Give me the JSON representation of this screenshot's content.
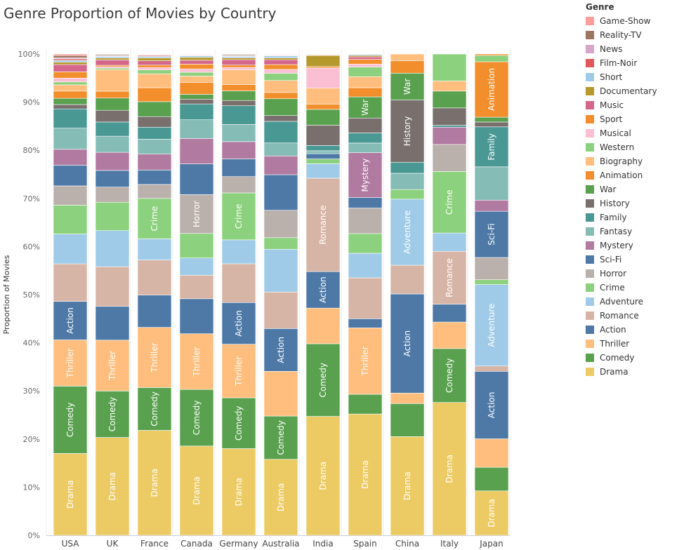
{
  "chart_data": {
    "type": "bar",
    "stacked": true,
    "normalized": true,
    "title": "Genre Proportion of Movies by Country",
    "ylabel": "Proportion of Movies",
    "xlabel": "",
    "ylim": [
      0,
      100
    ],
    "y_ticks": [
      "0%",
      "10%",
      "20%",
      "30%",
      "40%",
      "50%",
      "60%",
      "70%",
      "80%",
      "90%",
      "100%"
    ],
    "categories": [
      "USA",
      "UK",
      "France",
      "Canada",
      "Germany",
      "Australia",
      "India",
      "Spain",
      "China",
      "Italy",
      "Japan"
    ],
    "legend_title": "Genre",
    "legend_position": "right",
    "series": [
      {
        "name": "Drama",
        "color": "#edcb64",
        "values": [
          17.0,
          20.0,
          21.8,
          18.6,
          18.1,
          15.8,
          24.7,
          25.2,
          20.6,
          27.6,
          9.2
        ]
      },
      {
        "name": "Comedy",
        "color": "#59a14f",
        "values": [
          14.0,
          9.5,
          8.9,
          11.8,
          10.6,
          9.0,
          15.1,
          4.1,
          6.9,
          11.2,
          4.9
        ]
      },
      {
        "name": "Thriller",
        "color": "#ffbe7d",
        "values": [
          9.6,
          10.4,
          12.5,
          11.6,
          11.2,
          9.3,
          7.4,
          13.8,
          2.2,
          5.5,
          5.9
        ]
      },
      {
        "name": "Action",
        "color": "#4e79a7",
        "values": [
          8.0,
          6.9,
          6.7,
          7.3,
          8.7,
          8.9,
          7.6,
          1.9,
          20.7,
          3.7,
          14.0
        ]
      },
      {
        "name": "Romance",
        "color": "#d7b5a6",
        "values": [
          7.8,
          8.1,
          7.3,
          4.9,
          8.1,
          7.6,
          19.4,
          8.5,
          6.0,
          11.0,
          1.1
        ]
      },
      {
        "name": "Adventure",
        "color": "#a0cbe8",
        "values": [
          6.2,
          7.4,
          4.4,
          3.6,
          5.0,
          8.9,
          3.0,
          5.1,
          13.8,
          3.8,
          16.9
        ]
      },
      {
        "name": "Crime",
        "color": "#8cd17d",
        "values": [
          6.0,
          5.8,
          8.4,
          5.1,
          9.8,
          2.4,
          1.0,
          4.1,
          2.0,
          12.8,
          1.0
        ]
      },
      {
        "name": "Horror",
        "color": "#bab0ac",
        "values": [
          4.0,
          3.1,
          2.9,
          8.1,
          3.4,
          5.7,
          0,
          5.3,
          0,
          5.6,
          4.6
        ]
      },
      {
        "name": "Sci-Fi",
        "color": "#4e79a7",
        "values": [
          4.3,
          3.4,
          3.0,
          6.4,
          3.7,
          7.4,
          1.1,
          2.2,
          0,
          0,
          9.6
        ]
      },
      {
        "name": "Mystery",
        "color": "#b07aa1",
        "values": [
          3.3,
          3.7,
          3.3,
          5.3,
          3.6,
          3.9,
          0,
          9.3,
          0,
          3.6,
          2.3
        ]
      },
      {
        "name": "Fantasy",
        "color": "#86bcb6",
        "values": [
          4.4,
          3.3,
          3.1,
          3.9,
          3.6,
          2.7,
          0.6,
          2.0,
          3.4,
          0,
          6.9
        ]
      },
      {
        "name": "Family",
        "color": "#499894",
        "values": [
          4.0,
          2.9,
          2.5,
          3.3,
          3.9,
          4.5,
          1.1,
          2.1,
          2.3,
          0.4,
          8.3
        ]
      },
      {
        "name": "History",
        "color": "#79706e",
        "values": [
          0.9,
          2.4,
          2.2,
          1.0,
          1.1,
          1.2,
          4.2,
          3.1,
          13.0,
          3.6,
          1.0
        ]
      },
      {
        "name": "War",
        "color": "#59a14f",
        "values": [
          1.3,
          2.5,
          3.1,
          1.0,
          2.0,
          3.5,
          3.3,
          4.4,
          5.6,
          3.5,
          1.0
        ]
      },
      {
        "name": "Animation",
        "color": "#f28e2b",
        "values": [
          1.5,
          1.4,
          2.9,
          2.5,
          1.3,
          1.3,
          1.1,
          1.9,
          2.6,
          0,
          11.5
        ]
      },
      {
        "name": "Biography",
        "color": "#ffbe7d",
        "values": [
          1.3,
          4.4,
          2.9,
          1.3,
          3.1,
          2.5,
          3.3,
          2.3,
          1.4,
          2.1,
          0
        ]
      },
      {
        "name": "Western",
        "color": "#8cd17d",
        "values": [
          0.6,
          0.3,
          0.8,
          0.8,
          0,
          1.5,
          0,
          2.0,
          0,
          5.6,
          1.3
        ]
      },
      {
        "name": "Musical",
        "color": "#fabfd2",
        "values": [
          0.8,
          0.3,
          0.5,
          0.7,
          0.5,
          0.8,
          4.2,
          0.6,
          0,
          0,
          0
        ]
      },
      {
        "name": "Sport",
        "color": "#f28e2b",
        "values": [
          1.3,
          0.3,
          0.5,
          1.0,
          0.5,
          1.0,
          0.3,
          1.0,
          0,
          0,
          0.3
        ]
      },
      {
        "name": "Music",
        "color": "#d4668c",
        "values": [
          1.5,
          1.1,
          0.9,
          0.8,
          1.1,
          1.0,
          0,
          0.5,
          0,
          0,
          0
        ]
      },
      {
        "name": "Documentary",
        "color": "#b6992d",
        "values": [
          0.5,
          0.4,
          0.6,
          0.6,
          0.4,
          0.4,
          2.3,
          0.3,
          0,
          0,
          0
        ]
      },
      {
        "name": "Short",
        "color": "#a0cbe8",
        "values": [
          0.4,
          0.3,
          0.3,
          0.3,
          0.3,
          0.4,
          0,
          0.2,
          0,
          0,
          0
        ]
      },
      {
        "name": "Film-Noir",
        "color": "#e15759",
        "values": [
          0.3,
          0.1,
          0.2,
          0.1,
          0.1,
          0.1,
          0.1,
          0,
          0,
          0,
          0
        ]
      },
      {
        "name": "News",
        "color": "#d6a5c9",
        "values": [
          0.2,
          0.1,
          0.1,
          0.1,
          0.1,
          0.1,
          0.1,
          0,
          0,
          0,
          0
        ]
      },
      {
        "name": "Reality-TV",
        "color": "#9d7660",
        "values": [
          0.5,
          0.2,
          0.1,
          0.1,
          0.2,
          0.1,
          0.1,
          0.1,
          0,
          0,
          0
        ]
      },
      {
        "name": "Game-Show",
        "color": "#ff9d9a",
        "values": [
          0.3,
          0.1,
          0.1,
          0.1,
          0.1,
          0.1,
          0,
          0,
          0,
          0,
          0
        ]
      }
    ],
    "legend_order": [
      "Game-Show",
      "Reality-TV",
      "News",
      "Film-Noir",
      "Short",
      "Documentary",
      "Music",
      "Sport",
      "Musical",
      "Western",
      "Biography",
      "Animation",
      "War",
      "History",
      "Family",
      "Fantasy",
      "Mystery",
      "Sci-Fi",
      "Horror",
      "Crime",
      "Adventure",
      "Romance",
      "Action",
      "Thriller",
      "Comedy",
      "Drama"
    ],
    "grid": "vertical-only"
  }
}
